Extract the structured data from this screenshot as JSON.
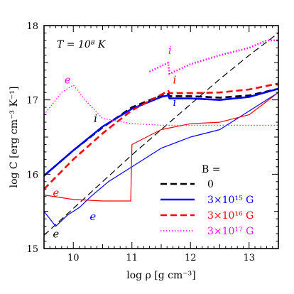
{
  "chart_data": {
    "type": "line",
    "title": "",
    "annotation": "T = 10⁸ K",
    "xlabel": "log ρ [g cm⁻³]",
    "ylabel": "log C [erg cm⁻³ K⁻¹]",
    "xlim": [
      9.5,
      13.5
    ],
    "ylim": [
      15,
      18
    ],
    "xticks": [
      "10",
      "11",
      "12",
      "13"
    ],
    "yticks": [
      "15",
      "16",
      "17",
      "18"
    ],
    "grid": false,
    "legend_title": "B =",
    "legend_position": "lower-right",
    "series": [
      {
        "name": "0",
        "color": "#000000",
        "style": "dashed",
        "component": "e",
        "x": [
          9.5,
          10.0,
          10.5,
          11.0,
          11.5,
          12.0,
          12.5,
          13.0,
          13.5
        ],
        "y": [
          15.18,
          15.54,
          15.9,
          16.26,
          16.6,
          16.94,
          17.28,
          17.6,
          17.9
        ]
      },
      {
        "name": "0",
        "color": "#000000",
        "style": "dashed",
        "component": "i",
        "x": [
          9.5,
          10.0,
          10.5,
          11.0,
          11.5,
          11.62,
          11.64,
          12.0,
          12.5,
          13.0,
          13.5
        ],
        "y": [
          15.98,
          16.32,
          16.63,
          16.9,
          17.06,
          17.08,
          17.05,
          17.05,
          17.03,
          17.06,
          17.15
        ]
      },
      {
        "name": "3×10¹⁵ G",
        "color": "#0000ff",
        "style": "solid",
        "component": "i",
        "x": [
          9.5,
          10.0,
          10.5,
          11.0,
          11.5,
          11.62,
          11.64,
          12.0,
          12.5,
          13.0,
          13.5
        ],
        "y": [
          15.98,
          16.32,
          16.64,
          16.88,
          17.04,
          17.06,
          17.02,
          17.02,
          17.0,
          17.04,
          17.15
        ]
      },
      {
        "name": "3×10¹⁵ G",
        "color": "#0000ff",
        "style": "solid",
        "component": "e",
        "x": [
          9.5,
          9.7,
          9.9,
          10.1,
          10.3,
          10.6,
          11.0,
          11.5,
          12.0,
          12.5,
          13.0,
          13.5
        ],
        "y": [
          15.5,
          15.3,
          15.45,
          15.55,
          15.7,
          15.9,
          16.1,
          16.35,
          16.5,
          16.6,
          16.85,
          17.1
        ]
      },
      {
        "name": "3×10¹⁶ G",
        "color": "#ff0000",
        "style": "dashed",
        "component": "i",
        "x": [
          9.5,
          10.0,
          10.5,
          11.0,
          11.5,
          11.62,
          11.64,
          12.0,
          12.5,
          13.0,
          13.5
        ],
        "y": [
          15.8,
          16.2,
          16.55,
          16.86,
          17.07,
          17.12,
          17.09,
          17.09,
          17.1,
          17.14,
          17.22
        ]
      },
      {
        "name": "3×10¹⁶ G",
        "color": "#ff0000",
        "style": "solid",
        "component": "e",
        "x": [
          9.5,
          10.0,
          10.5,
          10.98,
          11.0,
          11.5,
          12.0,
          12.5,
          13.0,
          13.5
        ],
        "y": [
          15.72,
          15.66,
          15.64,
          15.64,
          16.4,
          16.6,
          16.68,
          16.7,
          16.8,
          17.1
        ]
      },
      {
        "name": "3×10¹⁷ G",
        "color": "#ff00ff",
        "style": "dotted",
        "component": "e",
        "x": [
          9.5,
          9.8,
          10.0,
          10.2,
          10.5,
          11.0,
          11.5,
          12.0,
          12.5,
          13.0,
          13.5
        ],
        "y": [
          16.8,
          17.1,
          17.2,
          17.0,
          16.75,
          16.68,
          16.66,
          16.66,
          16.66,
          16.66,
          16.66
        ]
      },
      {
        "name": "3×10¹⁷ G",
        "color": "#ff00ff",
        "style": "dotted",
        "component": "i",
        "x": [
          11.3,
          11.62,
          11.64,
          12.0,
          12.5,
          13.0,
          13.3,
          13.5
        ],
        "y": [
          17.38,
          17.5,
          17.35,
          17.48,
          17.6,
          17.7,
          17.8,
          17.8
        ]
      }
    ],
    "curve_labels": [
      {
        "text": "i",
        "color": "#000000",
        "x": 10.35,
        "y": 16.7
      },
      {
        "text": "e",
        "color": "#ff00ff",
        "x": 9.85,
        "y": 17.22
      },
      {
        "text": "i",
        "color": "#ff00ff",
        "x": 11.62,
        "y": 17.62
      },
      {
        "text": "i",
        "color": "#ff0000",
        "x": 11.7,
        "y": 17.22
      },
      {
        "text": "i",
        "color": "#0000ff",
        "x": 11.7,
        "y": 16.92
      },
      {
        "text": "e",
        "color": "#ff0000",
        "x": 9.65,
        "y": 15.7
      },
      {
        "text": "e",
        "color": "#0000ff",
        "x": 10.28,
        "y": 15.38
      },
      {
        "text": "e",
        "color": "#000000",
        "x": 9.65,
        "y": 15.15
      }
    ]
  }
}
